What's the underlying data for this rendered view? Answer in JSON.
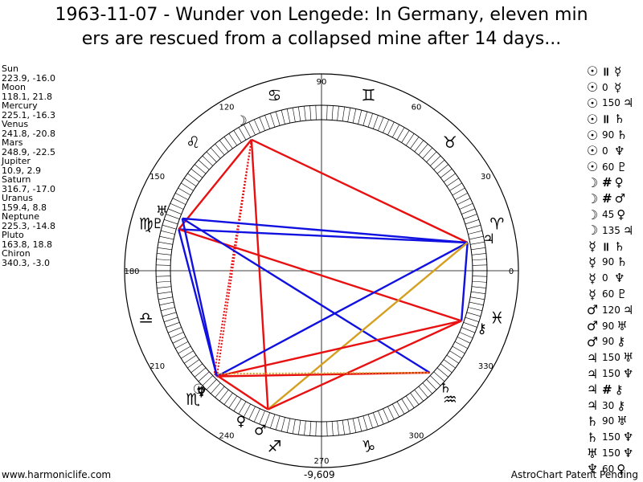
{
  "title_line1": "1963-11-07 - Wunder von Lengede: In Germany, eleven min",
  "title_line2": "ers are rescued from a collapsed mine after 14 days...",
  "planets": [
    {
      "name": "Sun",
      "coords": "223.9, -16.0"
    },
    {
      "name": "Moon",
      "coords": "118.1, 21.8"
    },
    {
      "name": "Mercury",
      "coords": "225.1, -16.3"
    },
    {
      "name": "Venus",
      "coords": "241.8, -20.8"
    },
    {
      "name": "Mars",
      "coords": "248.9, -22.5"
    },
    {
      "name": "Jupiter",
      "coords": "10.9, 2.9"
    },
    {
      "name": "Saturn",
      "coords": "316.7, -17.0"
    },
    {
      "name": "Uranus",
      "coords": "159.4, 8.8"
    },
    {
      "name": "Neptune",
      "coords": "225.3, -14.8"
    },
    {
      "name": "Pluto",
      "coords": "163.8, 18.8"
    },
    {
      "name": "Chiron",
      "coords": "340.3, -3.0"
    }
  ],
  "angle_labels": [
    {
      "text": "0",
      "deg": 0
    },
    {
      "text": "30",
      "deg": 30
    },
    {
      "text": "60",
      "deg": 60
    },
    {
      "text": "90",
      "deg": 90
    },
    {
      "text": "120",
      "deg": 120
    },
    {
      "text": "150",
      "deg": 150
    },
    {
      "text": "180",
      "deg": 180
    },
    {
      "text": "210",
      "deg": 210
    },
    {
      "text": "240",
      "deg": 240
    },
    {
      "text": "270",
      "deg": 270
    },
    {
      "text": "300",
      "deg": 300
    },
    {
      "text": "330",
      "deg": 330
    }
  ],
  "zodiac_signs": [
    "♈",
    "♉",
    "♊",
    "♋",
    "♌",
    "♍",
    "♎",
    "♏",
    "♐",
    "♑",
    "♒",
    "♓"
  ],
  "chart_planets": [
    {
      "glyph": "☉",
      "lon": 223.9,
      "lat": -16.0
    },
    {
      "glyph": "☽",
      "lon": 118.1,
      "lat": 21.8
    },
    {
      "glyph": "☿",
      "lon": 225.1,
      "lat": -16.3
    },
    {
      "glyph": "♀",
      "lon": 241.8,
      "lat": -20.8
    },
    {
      "glyph": "♂",
      "lon": 248.9,
      "lat": -22.5
    },
    {
      "glyph": "♃",
      "lon": 10.9,
      "lat": 2.9
    },
    {
      "glyph": "♄",
      "lon": 316.7,
      "lat": -17.0
    },
    {
      "glyph": "♅",
      "lon": 159.4,
      "lat": 8.8
    },
    {
      "glyph": "♆",
      "lon": 225.3,
      "lat": -14.8
    },
    {
      "glyph": "♇",
      "lon": 163.8,
      "lat": 18.8
    },
    {
      "glyph": "⚷",
      "lon": 340.3,
      "lat": -3.0
    }
  ],
  "aspect_lines": [
    {
      "a": 1,
      "b": 4,
      "color": "#e81010",
      "style": "solid"
    },
    {
      "a": 1,
      "b": 5,
      "color": "#e81010",
      "style": "solid"
    },
    {
      "a": 1,
      "b": 9,
      "color": "#e81010",
      "style": "solid"
    },
    {
      "a": 1,
      "b": 0,
      "color": "#e81010",
      "style": "dotted"
    },
    {
      "a": 1,
      "b": 8,
      "color": "#e81010",
      "style": "dotted"
    },
    {
      "a": 9,
      "b": 5,
      "color": "#1010e0",
      "style": "solid"
    },
    {
      "a": 9,
      "b": 10,
      "color": "#e81010",
      "style": "solid"
    },
    {
      "a": 7,
      "b": 5,
      "color": "#1010e0",
      "style": "solid"
    },
    {
      "a": 7,
      "b": 6,
      "color": "#1010e0",
      "style": "solid"
    },
    {
      "a": 7,
      "b": 8,
      "color": "#1010e0",
      "style": "solid"
    },
    {
      "a": 5,
      "b": 8,
      "color": "#1010e0",
      "style": "solid"
    },
    {
      "a": 5,
      "b": 10,
      "color": "#1010e0",
      "style": "solid"
    },
    {
      "a": 5,
      "b": 4,
      "color": "#d4a020",
      "style": "solid"
    },
    {
      "a": 10,
      "b": 4,
      "color": "#e81010",
      "style": "solid"
    },
    {
      "a": 10,
      "b": 8,
      "color": "#e81010",
      "style": "solid"
    },
    {
      "a": 8,
      "b": 6,
      "color": "#e81010",
      "style": "solid"
    },
    {
      "a": 0,
      "b": 6,
      "color": "#d4a020",
      "style": "dotted"
    },
    {
      "a": 0,
      "b": 4,
      "color": "#e81010",
      "style": "solid"
    },
    {
      "a": 9,
      "b": 8,
      "color": "#1010e0",
      "style": "solid"
    }
  ],
  "aspects": [
    {
      "p1": "☉",
      "asp": "॥",
      "p2": "☿"
    },
    {
      "p1": "☉",
      "asp": "0",
      "p2": "☿"
    },
    {
      "p1": "☉",
      "asp": "150",
      "p2": "♃"
    },
    {
      "p1": "☉",
      "asp": "॥",
      "p2": "♄"
    },
    {
      "p1": "☉",
      "asp": "90",
      "p2": "♄"
    },
    {
      "p1": "☉",
      "asp": "0",
      "p2": "♆"
    },
    {
      "p1": "☉",
      "asp": "60",
      "p2": "♇"
    },
    {
      "p1": "☽",
      "asp": "#",
      "p2": "♀"
    },
    {
      "p1": "☽",
      "asp": "#",
      "p2": "♂"
    },
    {
      "p1": "☽",
      "asp": "45",
      "p2": "♀"
    },
    {
      "p1": "☽",
      "asp": "135",
      "p2": "♃"
    },
    {
      "p1": "☿",
      "asp": "॥",
      "p2": "♄"
    },
    {
      "p1": "☿",
      "asp": "90",
      "p2": "♄"
    },
    {
      "p1": "☿",
      "asp": "0",
      "p2": "♆"
    },
    {
      "p1": "☿",
      "asp": "60",
      "p2": "♇"
    },
    {
      "p1": "♂",
      "asp": "120",
      "p2": "♃"
    },
    {
      "p1": "♂",
      "asp": "90",
      "p2": "♅"
    },
    {
      "p1": "♂",
      "asp": "90",
      "p2": "⚷"
    },
    {
      "p1": "♃",
      "asp": "150",
      "p2": "♅"
    },
    {
      "p1": "♃",
      "asp": "150",
      "p2": "♆"
    },
    {
      "p1": "♃",
      "asp": "#",
      "p2": "⚷"
    },
    {
      "p1": "♃",
      "asp": "30",
      "p2": "⚷"
    },
    {
      "p1": "♄",
      "asp": "90",
      "p2": "♅"
    },
    {
      "p1": "♄",
      "asp": "150",
      "p2": "♆"
    },
    {
      "p1": "♅",
      "asp": "150",
      "p2": "♆"
    },
    {
      "p1": "♆",
      "asp": "60",
      "p2": "♀"
    }
  ],
  "footer": {
    "left": "www.harmoniclife.com",
    "center": "-9,609",
    "right": "AstroChart Patent Pending"
  }
}
